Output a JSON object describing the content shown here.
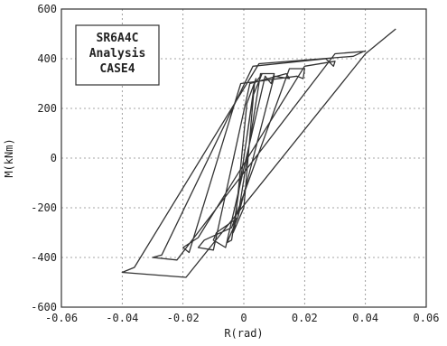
{
  "chart_data": {
    "type": "line",
    "title": "",
    "annotation": [
      "SR6A4C",
      "Analysis",
      "CASE4"
    ],
    "xlabel": "R(rad)",
    "ylabel": "M(kNm)",
    "xlim": [
      -0.06,
      0.06
    ],
    "ylim": [
      -600,
      600
    ],
    "x_ticks": [
      -0.06,
      -0.04,
      -0.02,
      0,
      0.02,
      0.04,
      0.06
    ],
    "x_tick_labels": [
      "-0.06",
      "-0.04",
      "-0.02",
      "0",
      "0.02",
      "0.04",
      "0.06"
    ],
    "y_ticks": [
      -600,
      -400,
      -200,
      0,
      200,
      400,
      600
    ],
    "y_tick_labels": [
      "-600",
      "-400",
      "-200",
      "0",
      "200",
      "400",
      "600"
    ],
    "grid": true,
    "series": [
      {
        "x": [
          0,
          0.0035,
          0.004,
          0.001,
          -0.003,
          -0.0035,
          0,
          0.0035,
          0.0055,
          0.006,
          0.003,
          -0.004,
          -0.0055,
          -0.002,
          0.0055,
          0.01,
          0.009,
          0.007,
          -0.006,
          -0.01,
          -0.009,
          -0.002,
          0.01,
          0.015,
          0.014,
          0.002,
          -0.01,
          -0.015,
          -0.013,
          -0.004,
          0.015,
          0.02,
          0.0195,
          0.0175,
          -0.001,
          -0.018,
          -0.02,
          -0.015,
          0.02,
          0.03,
          0.0295,
          0.027,
          0.003,
          -0.027,
          -0.03,
          -0.022,
          0.03,
          0.04,
          0.0395,
          0.036,
          0.005,
          -0.036,
          -0.04,
          -0.019,
          0.04,
          0.05
        ],
        "y": [
          0,
          300,
          320,
          220,
          -280,
          -300,
          -200,
          300,
          330,
          340,
          250,
          -330,
          -340,
          -240,
          340,
          340,
          300,
          330,
          -360,
          -330,
          -300,
          -240,
          330,
          320,
          340,
          300,
          -370,
          -360,
          -330,
          -280,
          360,
          360,
          320,
          330,
          300,
          -380,
          -360,
          -320,
          370,
          390,
          370,
          400,
          370,
          -390,
          -400,
          -410,
          420,
          430,
          430,
          410,
          380,
          -440,
          -460,
          -480,
          420,
          520
        ]
      }
    ]
  }
}
